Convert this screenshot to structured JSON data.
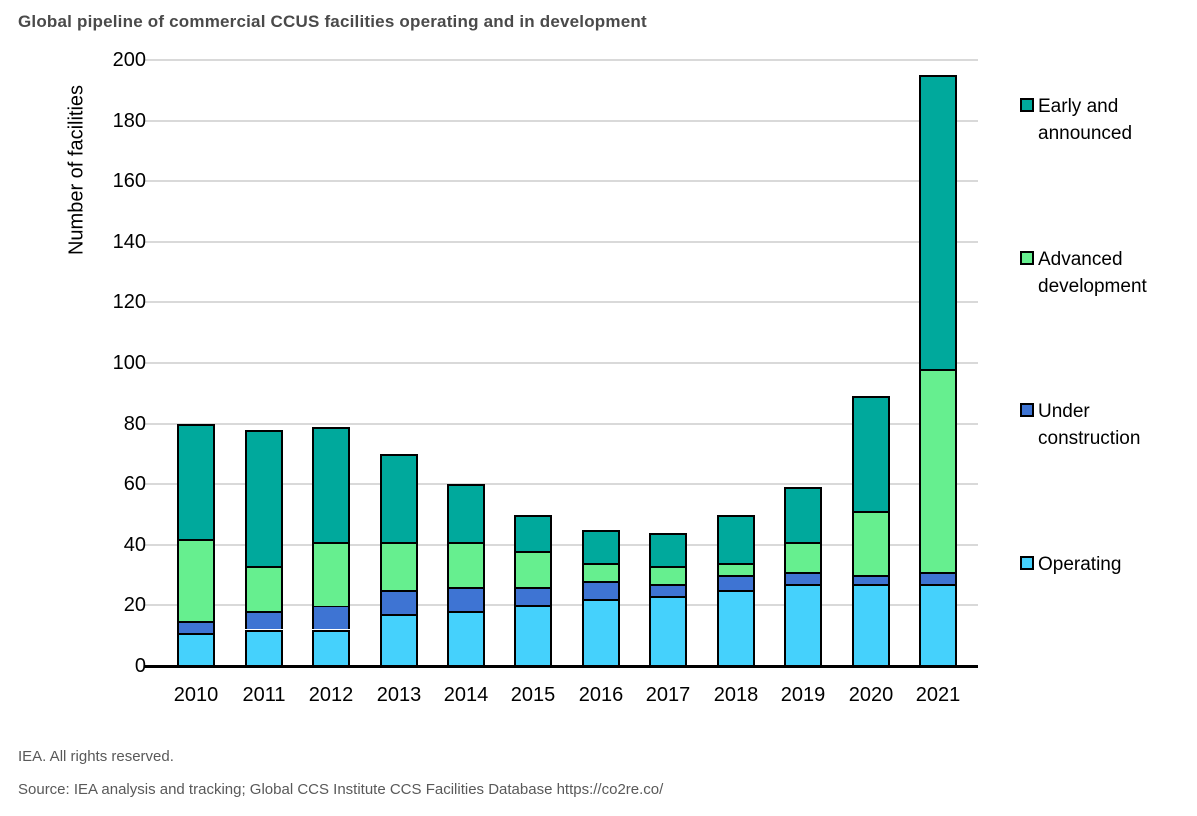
{
  "title": "Global pipeline of commercial CCUS facilities operating and in development",
  "footer": {
    "rights": "IEA. All rights reserved.",
    "source": "Source: IEA analysis and tracking; Global CCS Institute CCS Facilities Database https://co2re.co/"
  },
  "colors": {
    "operating": "#45d1fc",
    "under_construction": "#3e74d3",
    "advanced_development": "#66ef8f",
    "early_announced": "#00a99c",
    "gridline": "#d9d9d9",
    "bar_border": "#000000",
    "title_text": "#4a4a4a",
    "footer_text": "#595959"
  },
  "chart_data": {
    "type": "bar",
    "stacked": true,
    "title": "Global pipeline of commercial CCUS facilities operating and in development",
    "xlabel": "",
    "ylabel": "Number of facilities",
    "ylim": [
      0,
      200
    ],
    "yticks": [
      0,
      20,
      40,
      60,
      80,
      100,
      120,
      140,
      160,
      180,
      200
    ],
    "grid": true,
    "legend_position": "right",
    "categories": [
      "2010",
      "2011",
      "2012",
      "2013",
      "2014",
      "2015",
      "2016",
      "2017",
      "2018",
      "2019",
      "2020",
      "2021"
    ],
    "series": [
      {
        "name": "Operating",
        "color": "#45d1fc",
        "values": [
          11,
          12,
          12,
          17,
          18,
          20,
          22,
          23,
          25,
          27,
          27,
          27
        ]
      },
      {
        "name": "Under construction",
        "color": "#3e74d3",
        "values": [
          4,
          6,
          8,
          8,
          8,
          6,
          6,
          4,
          5,
          4,
          3,
          4
        ]
      },
      {
        "name": "Advanced development",
        "color": "#66ef8f",
        "values": [
          27,
          15,
          21,
          16,
          15,
          12,
          6,
          6,
          4,
          10,
          21,
          67
        ]
      },
      {
        "name": "Early and announced",
        "color": "#00a99c",
        "values": [
          38,
          45,
          38,
          29,
          19,
          12,
          11,
          11,
          16,
          18,
          38,
          97
        ]
      }
    ],
    "totals": [
      80,
      78,
      79,
      70,
      60,
      50,
      45,
      44,
      50,
      59,
      89,
      195
    ],
    "legend_labels_top_to_bottom": [
      "Early and announced",
      "Advanced development",
      "Under construction",
      "Operating"
    ]
  }
}
